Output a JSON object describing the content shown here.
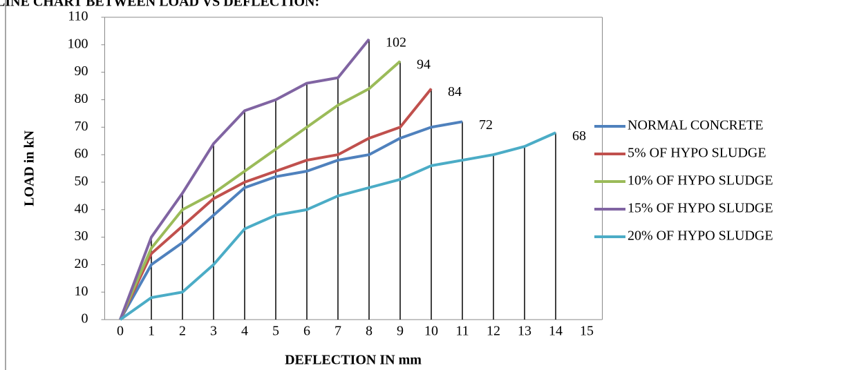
{
  "chart_data": {
    "type": "line",
    "title": "LINE CHART BETWEEN LOAD VS DEFLECTION:",
    "x_label": "DEFLECTION IN mm",
    "y_label": "LOAD in kN",
    "x": [
      0,
      1,
      2,
      3,
      4,
      5,
      6,
      7,
      8,
      9,
      10,
      11,
      12,
      13,
      14
    ],
    "series": [
      {
        "name": "NORMAL CONCRETE",
        "color": "#4f81bd",
        "values": [
          0,
          20,
          28,
          38,
          48,
          52,
          54,
          58,
          60,
          66,
          70,
          72,
          null,
          null,
          null
        ]
      },
      {
        "name": "5% OF HYPO SLUDGE",
        "color": "#c0504d",
        "values": [
          0,
          24,
          34,
          44,
          50,
          54,
          58,
          60,
          66,
          70,
          84,
          null,
          null,
          null,
          null
        ]
      },
      {
        "name": "10% OF HYPO SLUDGE",
        "color": "#9bbb59",
        "values": [
          0,
          26,
          40,
          46,
          54,
          62,
          70,
          78,
          84,
          94,
          null,
          null,
          null,
          null,
          null
        ]
      },
      {
        "name": "15% OF HYPO SLUDGE",
        "color": "#8064a2",
        "values": [
          0,
          30,
          46,
          64,
          76,
          80,
          86,
          88,
          102,
          null,
          null,
          null,
          null,
          null,
          null
        ]
      },
      {
        "name": "20% OF HYPO SLUDGE",
        "color": "#4bacc6",
        "values": [
          0,
          8,
          10,
          20,
          33,
          38,
          40,
          45,
          48,
          51,
          56,
          58,
          60,
          63,
          68
        ]
      }
    ],
    "xlim": [
      -0.5,
      15.5
    ],
    "xticks": [
      0,
      1,
      2,
      3,
      4,
      5,
      6,
      7,
      8,
      9,
      10,
      11,
      12,
      13,
      14,
      15
    ],
    "ylim": [
      0,
      110
    ],
    "yticks": [
      0,
      10,
      20,
      30,
      40,
      50,
      60,
      70,
      80,
      90,
      100,
      110
    ],
    "grid": false,
    "drop_lines": true,
    "end_labels": true,
    "legend": "right"
  }
}
